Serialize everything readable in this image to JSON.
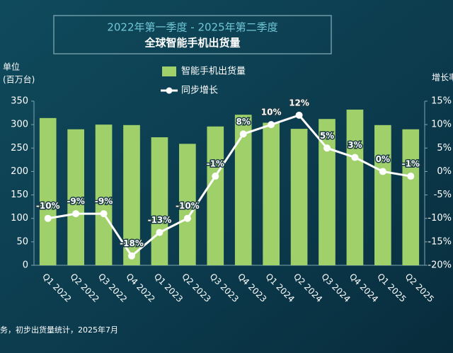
{
  "chart_data": {
    "type": "bar",
    "title": "2022年第一季度 - 2025年第二季度",
    "subtitle": "全球智能手机出货量",
    "ylabel": [
      "单位",
      "(百万台)"
    ],
    "y2label": "增长率",
    "source": "务，初步出货量统计，2025年7月",
    "categories": [
      "Q1 2022",
      "Q2 2022",
      "Q3 2022",
      "Q4 2022",
      "Q1 2023",
      "Q2 2023",
      "Q3 2023",
      "Q4 2023",
      "Q1 2024",
      "Q2 2024",
      "Q3 2024",
      "Q4 2024",
      "Q1 2025",
      "Q2 2025"
    ],
    "series": [
      {
        "name": "智能手机出货量",
        "type": "bar",
        "color": "#9fd06a",
        "values": [
          314,
          290,
          300,
          299,
          273,
          259,
          296,
          321,
          304,
          291,
          312,
          332,
          299,
          290
        ]
      },
      {
        "name": "同步增长",
        "type": "line",
        "axis": "y2",
        "color": "#ffffff",
        "values": [
          -10,
          -9,
          -9,
          -18,
          -13,
          -10,
          -1,
          8,
          10,
          12,
          5,
          3,
          0,
          -1
        ],
        "value_labels": [
          "-10%",
          "-9%",
          "-9%",
          "-18%",
          "-13%",
          "-10%",
          "-1%",
          "8%",
          "10%",
          "12%",
          "5%",
          "3%",
          "0%",
          "-1%"
        ]
      }
    ],
    "ylim": [
      0,
      350
    ],
    "yticks": [
      0,
      50,
      100,
      150,
      200,
      250,
      300,
      350
    ],
    "y2lim": [
      -20,
      15
    ],
    "y2ticks": [
      {
        "value": -20,
        "label": "-20%"
      },
      {
        "value": -15,
        "label": "-15%"
      },
      {
        "value": -10,
        "label": "-10%"
      },
      {
        "value": -5,
        "label": "-5%"
      },
      {
        "value": 0,
        "label": "0%"
      },
      {
        "value": 5,
        "label": "5%"
      },
      {
        "value": 10,
        "label": "10%"
      },
      {
        "value": 15,
        "label": "15%"
      }
    ],
    "grid": false
  }
}
